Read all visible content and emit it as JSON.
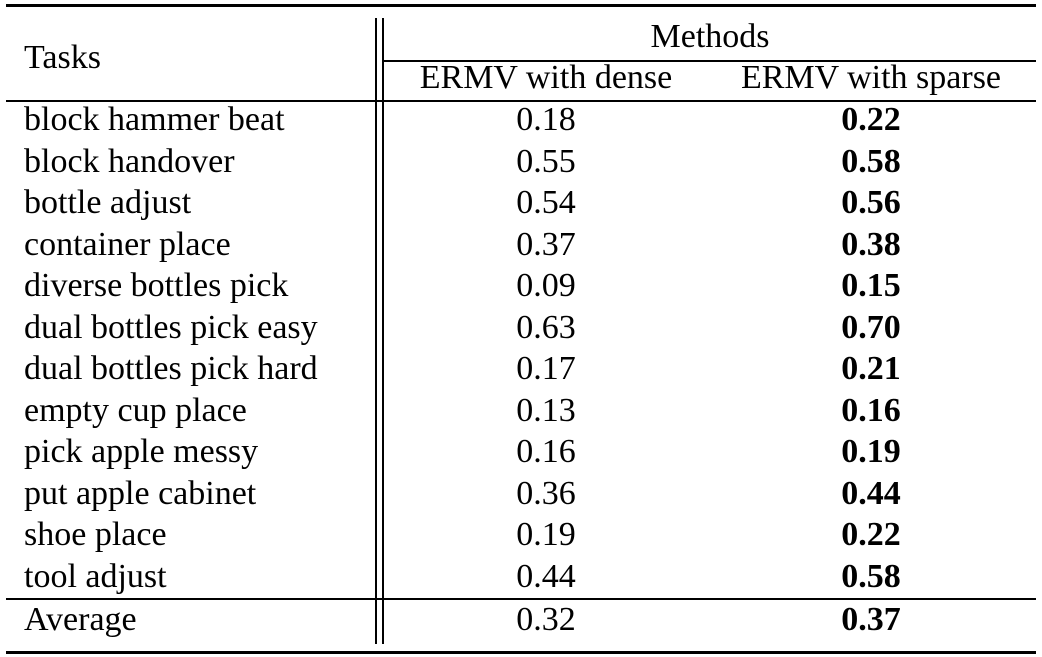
{
  "table": {
    "task_header": "Tasks",
    "methods_header": "Methods",
    "col_dense": "ERMV with dense",
    "col_sparse": "ERMV with sparse",
    "rows": [
      {
        "task": "block hammer beat",
        "dense": "0.18",
        "sparse": "0.22"
      },
      {
        "task": "block handover",
        "dense": "0.55",
        "sparse": "0.58"
      },
      {
        "task": "bottle adjust",
        "dense": "0.54",
        "sparse": "0.56"
      },
      {
        "task": "container place",
        "dense": "0.37",
        "sparse": "0.38"
      },
      {
        "task": "diverse bottles pick",
        "dense": "0.09",
        "sparse": "0.15"
      },
      {
        "task": "dual bottles pick easy",
        "dense": "0.63",
        "sparse": "0.70"
      },
      {
        "task": "dual bottles pick hard",
        "dense": "0.17",
        "sparse": "0.21"
      },
      {
        "task": "empty cup place",
        "dense": "0.13",
        "sparse": "0.16"
      },
      {
        "task": "pick apple messy",
        "dense": "0.16",
        "sparse": "0.19"
      },
      {
        "task": "put apple cabinet",
        "dense": "0.36",
        "sparse": "0.44"
      },
      {
        "task": "shoe place",
        "dense": "0.19",
        "sparse": "0.22"
      },
      {
        "task": "tool adjust",
        "dense": "0.44",
        "sparse": "0.58"
      }
    ],
    "average": {
      "task": "Average",
      "dense": "0.32",
      "sparse": "0.37"
    }
  }
}
